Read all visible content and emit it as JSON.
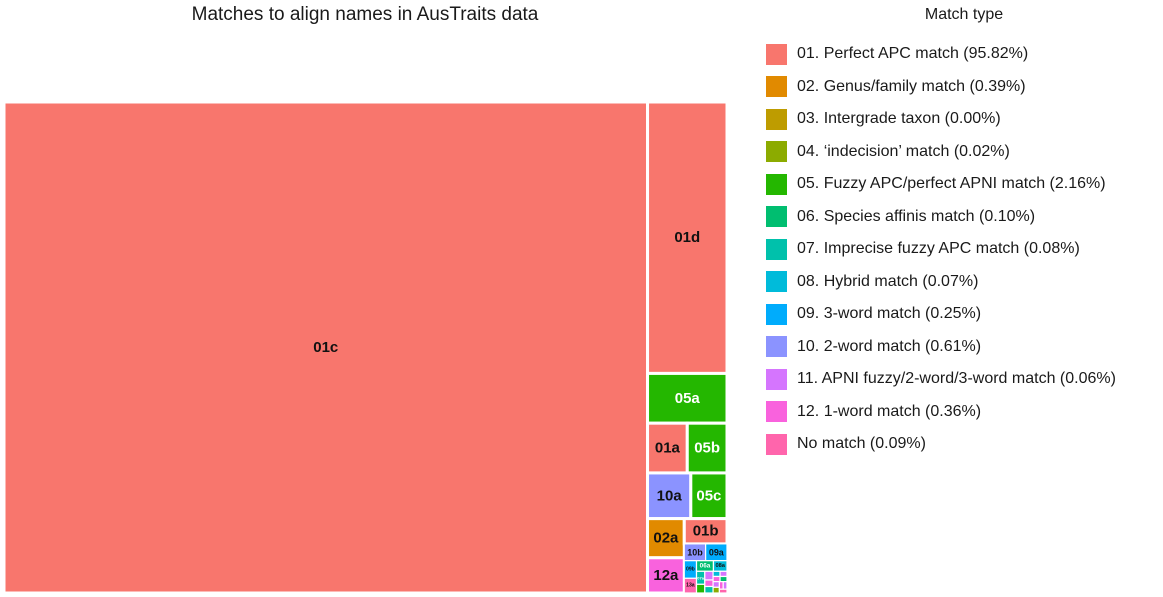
{
  "chart_data": {
    "type": "treemap",
    "title": "Matches to align names in AusTraits data",
    "legend": {
      "title": "Match type",
      "placement": "right",
      "items": [
        {
          "label": "01. Perfect APC match (95.82%)",
          "color": "#F8766D"
        },
        {
          "label": "02. Genus/family match (0.39%)",
          "color": "#E18A00"
        },
        {
          "label": "03. Intergrade taxon (0.00%)",
          "color": "#BE9C00"
        },
        {
          "label": "04. ‘indecision’ match (0.02%)",
          "color": "#8CAB00"
        },
        {
          "label": "05. Fuzzy APC/perfect APNI match (2.16%)",
          "color": "#24B700"
        },
        {
          "label": "06. Species affinis match (0.10%)",
          "color": "#00BE70"
        },
        {
          "label": "07. Imprecise fuzzy APC match (0.08%)",
          "color": "#00C1AB"
        },
        {
          "label": "08. Hybrid match (0.07%)",
          "color": "#00BBDA"
        },
        {
          "label": "09. 3-word match (0.25%)",
          "color": "#00ACFC"
        },
        {
          "label": "10. 2-word match (0.61%)",
          "color": "#8B93FF"
        },
        {
          "label": "11. APNI fuzzy/2-word/3-word match (0.06%)",
          "color": "#D575FE"
        },
        {
          "label": "12. 1-word match (0.36%)",
          "color": "#F962DD"
        },
        {
          "label": "No match (0.09%)",
          "color": "#FF65AC"
        }
      ]
    },
    "tiles": [
      {
        "label": "01c",
        "group": 0,
        "value": 87.9
      },
      {
        "label": "01d",
        "group": 0,
        "value": 6.0
      },
      {
        "label": "05a",
        "group": 4,
        "value": 1.1
      },
      {
        "label": "01a",
        "group": 0,
        "value": 0.55
      },
      {
        "label": "05b",
        "group": 4,
        "value": 0.55
      },
      {
        "label": "10a",
        "group": 9,
        "value": 0.55
      },
      {
        "label": "05c",
        "group": 4,
        "value": 0.46
      },
      {
        "label": "02a",
        "group": 1,
        "value": 0.4
      },
      {
        "label": "12a",
        "group": 11,
        "value": 0.36
      },
      {
        "label": "01b",
        "group": 0,
        "value": 0.3
      },
      {
        "label": "10b",
        "group": 9,
        "value": 0.1
      },
      {
        "label": "09a",
        "group": 8,
        "value": 0.1
      },
      {
        "label": "09b",
        "group": 8,
        "value": 0.06
      },
      {
        "label": "13a",
        "group": 12,
        "value": 0.05
      },
      {
        "label": "08a",
        "group": 7,
        "value": 0.04
      },
      {
        "label": "06a",
        "group": 5,
        "value": 0.05
      },
      {
        "label": "07a",
        "group": 6,
        "value": 0.03
      },
      {
        "label": "",
        "group": 4,
        "value": 0.02
      },
      {
        "label": "",
        "group": 10,
        "value": 0.02
      },
      {
        "label": "",
        "group": 11,
        "value": 0.015
      },
      {
        "label": "",
        "group": 6,
        "value": 0.015
      },
      {
        "label": "",
        "group": 7,
        "value": 0.01
      },
      {
        "label": "",
        "group": 10,
        "value": 0.01
      },
      {
        "label": "",
        "group": 11,
        "value": 0.01
      },
      {
        "label": "",
        "group": 5,
        "value": 0.01
      },
      {
        "label": "",
        "group": 10,
        "value": 0.01
      },
      {
        "label": "",
        "group": 3,
        "value": 0.01
      },
      {
        "label": "",
        "group": 11,
        "value": 0.008
      },
      {
        "label": "",
        "group": 10,
        "value": 0.008
      },
      {
        "label": "",
        "group": 12,
        "value": 0.008
      }
    ]
  }
}
